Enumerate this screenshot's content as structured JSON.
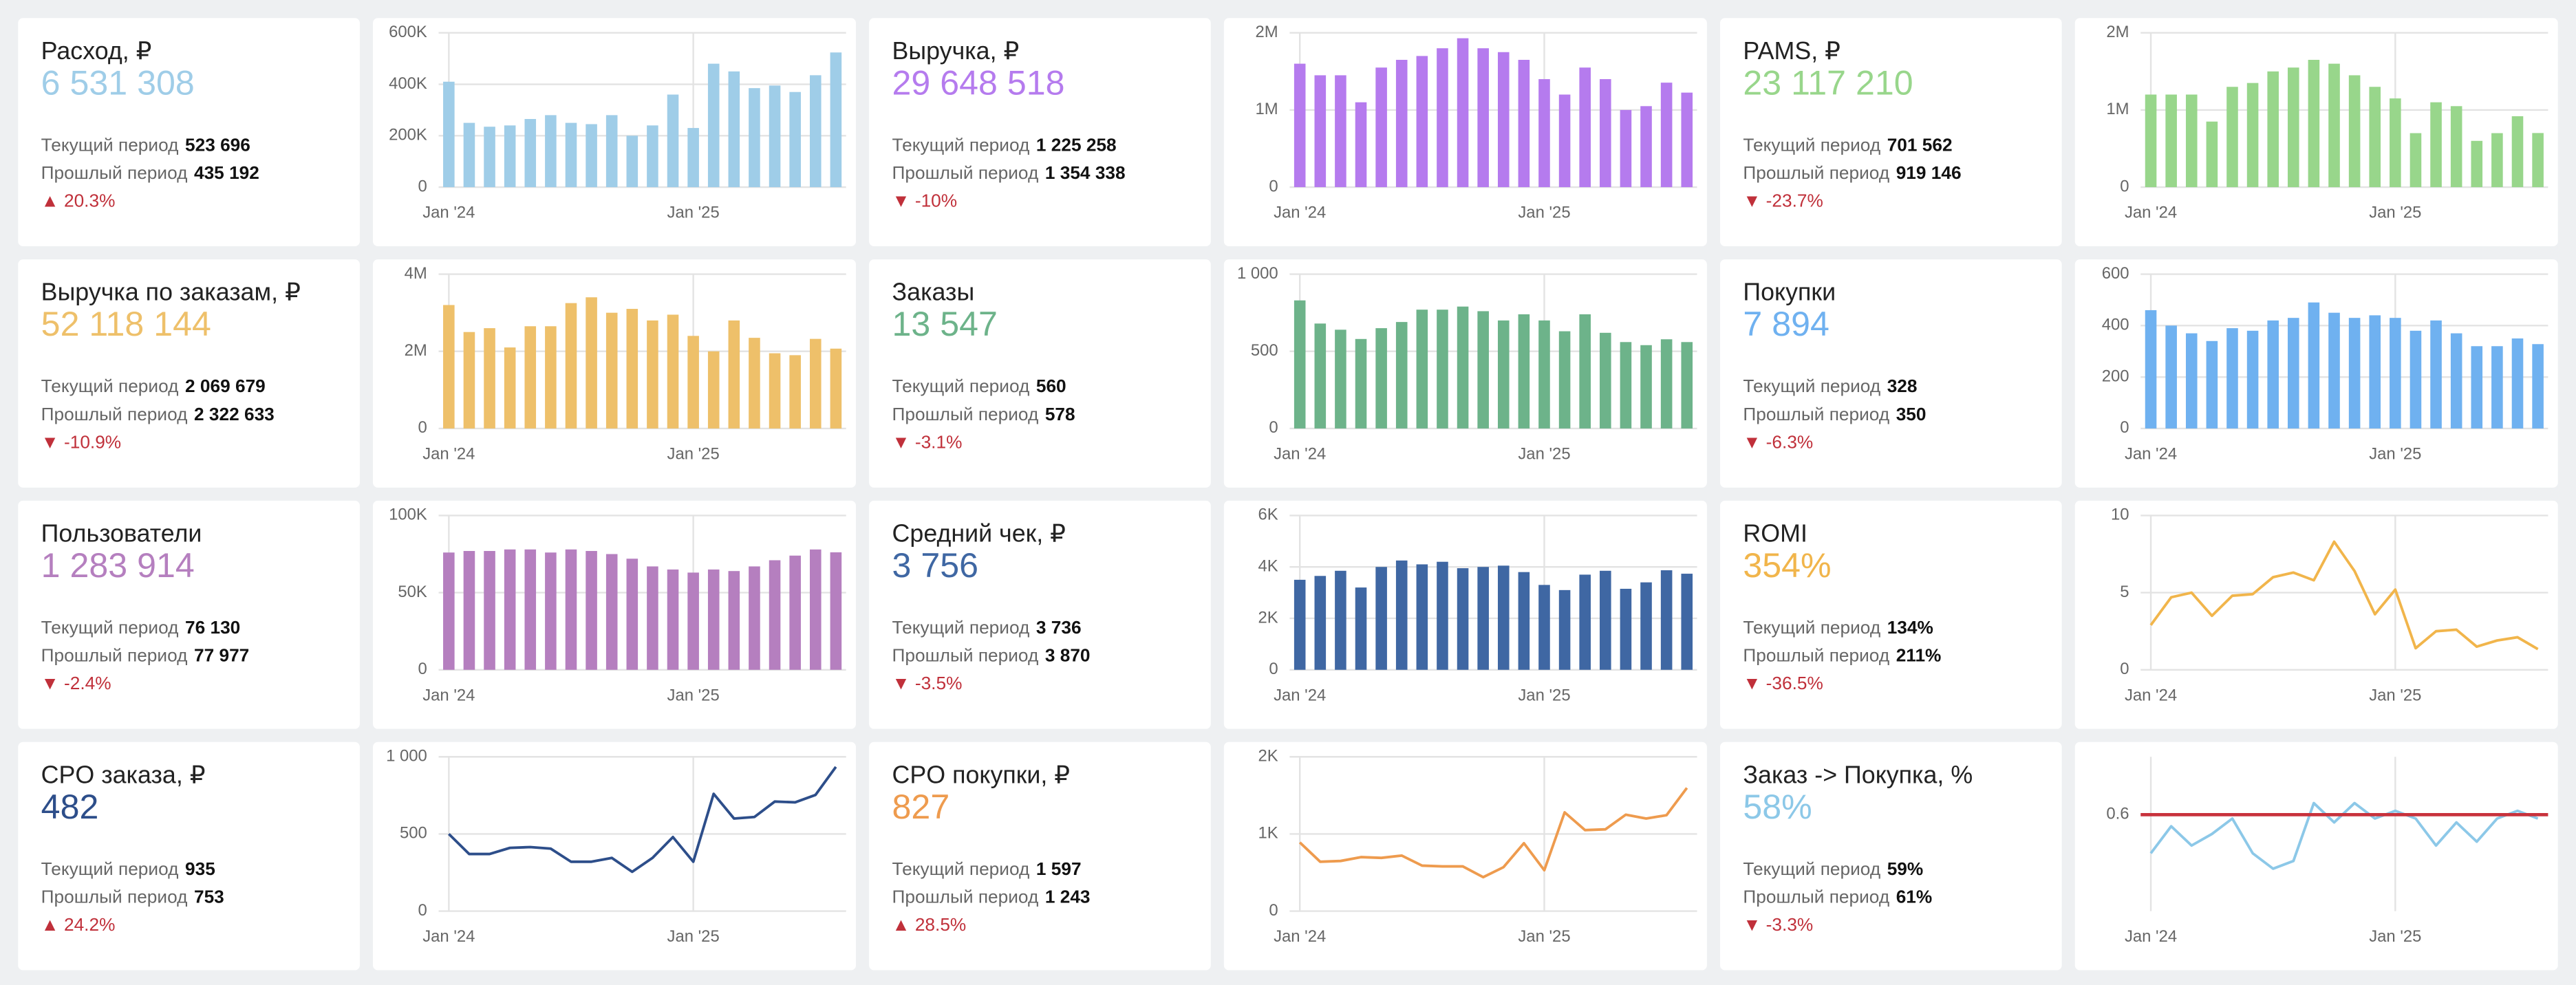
{
  "cards": [
    {
      "title": "Расход, ₽",
      "value": "6 531 308",
      "current_label": "Текущий период",
      "current": "523 696",
      "previous_label": "Прошлый период",
      "previous": "435 192",
      "change": "▲ 20.3%"
    },
    {
      "title": "Выручка, ₽",
      "value": "29 648 518",
      "current_label": "Текущий период",
      "current": "1 225 258",
      "previous_label": "Прошлый период",
      "previous": "1 354 338",
      "change": "▼ -10%"
    },
    {
      "title": "PAMS, ₽",
      "value": "23 117 210",
      "current_label": "Текущий период",
      "current": "701 562",
      "previous_label": "Прошлый период",
      "previous": "919 146",
      "change": "▼ -23.7%"
    },
    {
      "title": "Выручка по заказам, ₽",
      "value": "52 118 144",
      "current_label": "Текущий период",
      "current": "2 069 679",
      "previous_label": "Прошлый период",
      "previous": "2 322 633",
      "change": "▼ -10.9%"
    },
    {
      "title": "Заказы",
      "value": "13 547",
      "current_label": "Текущий период",
      "current": "560",
      "previous_label": "Прошлый период",
      "previous": "578",
      "change": "▼ -3.1%"
    },
    {
      "title": "Покупки",
      "value": "7 894",
      "current_label": "Текущий период",
      "current": "328",
      "previous_label": "Прошлый период",
      "previous": "350",
      "change": "▼ -6.3%"
    },
    {
      "title": "Пользователи",
      "value": "1 283 914",
      "current_label": "Текущий период",
      "current": "76 130",
      "previous_label": "Прошлый период",
      "previous": "77 977",
      "change": "▼ -2.4%"
    },
    {
      "title": "Средний чек, ₽",
      "value": "3 756",
      "current_label": "Текущий период",
      "current": "3 736",
      "previous_label": "Прошлый период",
      "previous": "3 870",
      "change": "▼ -3.5%"
    },
    {
      "title": "ROMI",
      "value": "354%",
      "current_label": "Текущий период",
      "current": "134%",
      "previous_label": "Прошлый период",
      "previous": "211%",
      "change": "▼ -36.5%"
    },
    {
      "title": "CPO заказа, ₽",
      "value": "482",
      "current_label": "Текущий период",
      "current": "935",
      "previous_label": "Прошлый период",
      "previous": "753",
      "change": "▲ 24.2%"
    },
    {
      "title": "CPO покупки, ₽",
      "value": "827",
      "current_label": "Текущий период",
      "current": "1 597",
      "previous_label": "Прошлый период",
      "previous": "1 243",
      "change": "▲ 28.5%"
    },
    {
      "title": "Заказ -> Покупка, %",
      "value": "58%",
      "current_label": "Текущий период",
      "current": "59%",
      "previous_label": "Прошлый период",
      "previous": "61%",
      "change": "▼ -3.3%"
    }
  ],
  "chart_data": [
    {
      "type": "bar",
      "color": "#9fcde8",
      "categories": [
        "Jan '24",
        null,
        null,
        null,
        null,
        null,
        null,
        null,
        null,
        null,
        null,
        null,
        "Jan '25",
        null,
        null,
        null,
        null,
        null,
        null,
        null
      ],
      "values": [
        410000,
        250000,
        235000,
        240000,
        265000,
        280000,
        250000,
        245000,
        280000,
        200000,
        240000,
        360000,
        230000,
        480000,
        450000,
        385000,
        395000,
        370000,
        435192,
        523696
      ],
      "ylim": [
        0,
        600000
      ],
      "yticks": [
        0,
        {
          "value": 200000,
          "label": "200K"
        },
        {
          "value": 400000,
          "label": "400K"
        },
        {
          "value": 600000,
          "label": "600K"
        }
      ]
    },
    {
      "type": "bar",
      "color": "#b57bee",
      "categories": [
        "Jan '24",
        null,
        null,
        null,
        null,
        null,
        null,
        null,
        null,
        null,
        null,
        null,
        "Jan '25",
        null,
        null,
        null,
        null,
        null,
        null,
        null
      ],
      "values": [
        1600000,
        1450000,
        1450000,
        1100000,
        1550000,
        1650000,
        1700000,
        1800000,
        1930000,
        1800000,
        1750000,
        1650000,
        1400000,
        1200000,
        1550000,
        1400000,
        1000000,
        1050000,
        1354338,
        1225258
      ],
      "ylim": [
        0,
        2000000
      ],
      "yticks": [
        0,
        {
          "value": 1000000,
          "label": "1M"
        },
        {
          "value": 2000000,
          "label": "2M"
        }
      ]
    },
    {
      "type": "bar",
      "color": "#98d68b",
      "categories": [
        "Jan '24",
        null,
        null,
        null,
        null,
        null,
        null,
        null,
        null,
        null,
        null,
        null,
        "Jan '25",
        null,
        null,
        null,
        null,
        null,
        null,
        null
      ],
      "values": [
        1200000,
        1200000,
        1200000,
        850000,
        1300000,
        1350000,
        1500000,
        1550000,
        1650000,
        1600000,
        1450000,
        1300000,
        1150000,
        700000,
        1100000,
        1050000,
        600000,
        700000,
        919146,
        701562
      ],
      "ylim": [
        0,
        2000000
      ],
      "yticks": [
        0,
        {
          "value": 1000000,
          "label": "1M"
        },
        {
          "value": 2000000,
          "label": "2M"
        }
      ]
    },
    {
      "type": "bar",
      "color": "#eec06a",
      "categories": [
        "Jan '24",
        null,
        null,
        null,
        null,
        null,
        null,
        null,
        null,
        null,
        null,
        null,
        "Jan '25",
        null,
        null,
        null,
        null,
        null,
        null,
        null
      ],
      "values": [
        3200000,
        2500000,
        2600000,
        2100000,
        2650000,
        2650000,
        3250000,
        3400000,
        3000000,
        3100000,
        2800000,
        2950000,
        2400000,
        2000000,
        2800000,
        2350000,
        1950000,
        1900000,
        2322633,
        2069679
      ],
      "ylim": [
        0,
        4000000
      ],
      "yticks": [
        0,
        {
          "value": 2000000,
          "label": "2M"
        },
        {
          "value": 4000000,
          "label": "4M"
        }
      ]
    },
    {
      "type": "bar",
      "color": "#6db38a",
      "categories": [
        "Jan '24",
        null,
        null,
        null,
        null,
        null,
        null,
        null,
        null,
        null,
        null,
        null,
        "Jan '25",
        null,
        null,
        null,
        null,
        null,
        null,
        null
      ],
      "values": [
        830,
        680,
        640,
        580,
        650,
        690,
        770,
        770,
        790,
        760,
        700,
        740,
        700,
        630,
        740,
        620,
        560,
        540,
        578,
        560
      ],
      "ylim": [
        0,
        1000
      ],
      "yticks": [
        0,
        500,
        {
          "value": 1000,
          "label": "1 000"
        }
      ]
    },
    {
      "type": "bar",
      "color": "#6fb1f0",
      "categories": [
        "Jan '24",
        null,
        null,
        null,
        null,
        null,
        null,
        null,
        null,
        null,
        null,
        null,
        "Jan '25",
        null,
        null,
        null,
        null,
        null,
        null,
        null
      ],
      "values": [
        460,
        400,
        370,
        340,
        390,
        380,
        420,
        430,
        490,
        450,
        430,
        440,
        430,
        380,
        420,
        370,
        320,
        320,
        350,
        328
      ],
      "ylim": [
        0,
        600
      ],
      "yticks": [
        0,
        200,
        400,
        600
      ]
    },
    {
      "type": "bar",
      "color": "#b57fbf",
      "categories": [
        "Jan '24",
        null,
        null,
        null,
        null,
        null,
        null,
        null,
        null,
        null,
        null,
        null,
        "Jan '25",
        null,
        null,
        null,
        null,
        null,
        null,
        null
      ],
      "values": [
        76000,
        77000,
        77000,
        78000,
        78000,
        76000,
        78000,
        77000,
        75000,
        72000,
        67000,
        65000,
        63000,
        65000,
        64000,
        67000,
        71000,
        74000,
        77977,
        76130
      ],
      "ylim": [
        0,
        100000
      ],
      "yticks": [
        0,
        {
          "value": 50000,
          "label": "50K"
        },
        {
          "value": 100000,
          "label": "100K"
        }
      ]
    },
    {
      "type": "bar",
      "color": "#3f67a3",
      "categories": [
        "Jan '24",
        null,
        null,
        null,
        null,
        null,
        null,
        null,
        null,
        null,
        null,
        null,
        "Jan '25",
        null,
        null,
        null,
        null,
        null,
        null,
        null
      ],
      "values": [
        3500,
        3650,
        3850,
        3200,
        4000,
        4250,
        4100,
        4200,
        3950,
        4000,
        4050,
        3800,
        3300,
        3100,
        3700,
        3850,
        3150,
        3400,
        3870,
        3736
      ],
      "ylim": [
        0,
        6000
      ],
      "yticks": [
        0,
        {
          "value": 2000,
          "label": "2K"
        },
        {
          "value": 4000,
          "label": "4K"
        },
        {
          "value": 6000,
          "label": "6K"
        }
      ]
    },
    {
      "type": "line",
      "color": "#f1b54b",
      "categories": [
        "Jan '24",
        null,
        null,
        null,
        null,
        null,
        null,
        null,
        null,
        null,
        null,
        null,
        "Jan '25",
        null,
        null,
        null,
        null,
        null,
        null,
        null
      ],
      "values": [
        2.9,
        4.7,
        5.0,
        3.5,
        4.8,
        4.9,
        6.0,
        6.3,
        5.8,
        8.3,
        6.4,
        3.6,
        5.2,
        1.4,
        2.5,
        2.6,
        1.5,
        1.9,
        2.11,
        1.34
      ],
      "ylim": [
        0,
        10
      ],
      "yticks": [
        0,
        5,
        10
      ]
    },
    {
      "type": "line",
      "color": "#2d4e8a",
      "categories": [
        "Jan '24",
        null,
        null,
        null,
        null,
        null,
        null,
        null,
        null,
        null,
        null,
        null,
        "Jan '25",
        null,
        null,
        null,
        null,
        null,
        null,
        null
      ],
      "values": [
        500,
        370,
        370,
        410,
        415,
        405,
        320,
        320,
        345,
        255,
        345,
        480,
        320,
        760,
        600,
        610,
        710,
        705,
        753,
        935
      ],
      "ylim": [
        0,
        1000
      ],
      "yticks": [
        0,
        500,
        {
          "value": 1000,
          "label": "1 000"
        }
      ]
    },
    {
      "type": "line",
      "color": "#ee9b4e",
      "categories": [
        "Jan '24",
        null,
        null,
        null,
        null,
        null,
        null,
        null,
        null,
        null,
        null,
        null,
        "Jan '25",
        null,
        null,
        null,
        null,
        null,
        null,
        null
      ],
      "values": [
        890,
        640,
        650,
        700,
        690,
        720,
        590,
        580,
        580,
        440,
        570,
        880,
        530,
        1280,
        1050,
        1060,
        1250,
        1200,
        1243,
        1597
      ],
      "ylim": [
        0,
        2000
      ],
      "yticks": [
        0,
        {
          "value": 1000,
          "label": "1K"
        },
        {
          "value": 2000,
          "label": "2K"
        }
      ]
    },
    {
      "type": "line",
      "color": "#8cc8e8",
      "categories": [
        "Jan '24",
        null,
        null,
        null,
        null,
        null,
        null,
        null,
        null,
        null,
        null,
        null,
        "Jan '25",
        null,
        null,
        null,
        null,
        null,
        null,
        null
      ],
      "values": [
        0.5,
        0.57,
        0.52,
        0.55,
        0.59,
        0.5,
        0.46,
        0.48,
        0.63,
        0.58,
        0.63,
        0.59,
        0.61,
        0.59,
        0.52,
        0.58,
        0.53,
        0.59,
        0.61,
        0.59
      ],
      "ylim": [
        0.35,
        0.75
      ],
      "yticks": [
        0.6
      ],
      "reference_line": {
        "value": 0.6,
        "color": "#c8323c"
      }
    }
  ]
}
